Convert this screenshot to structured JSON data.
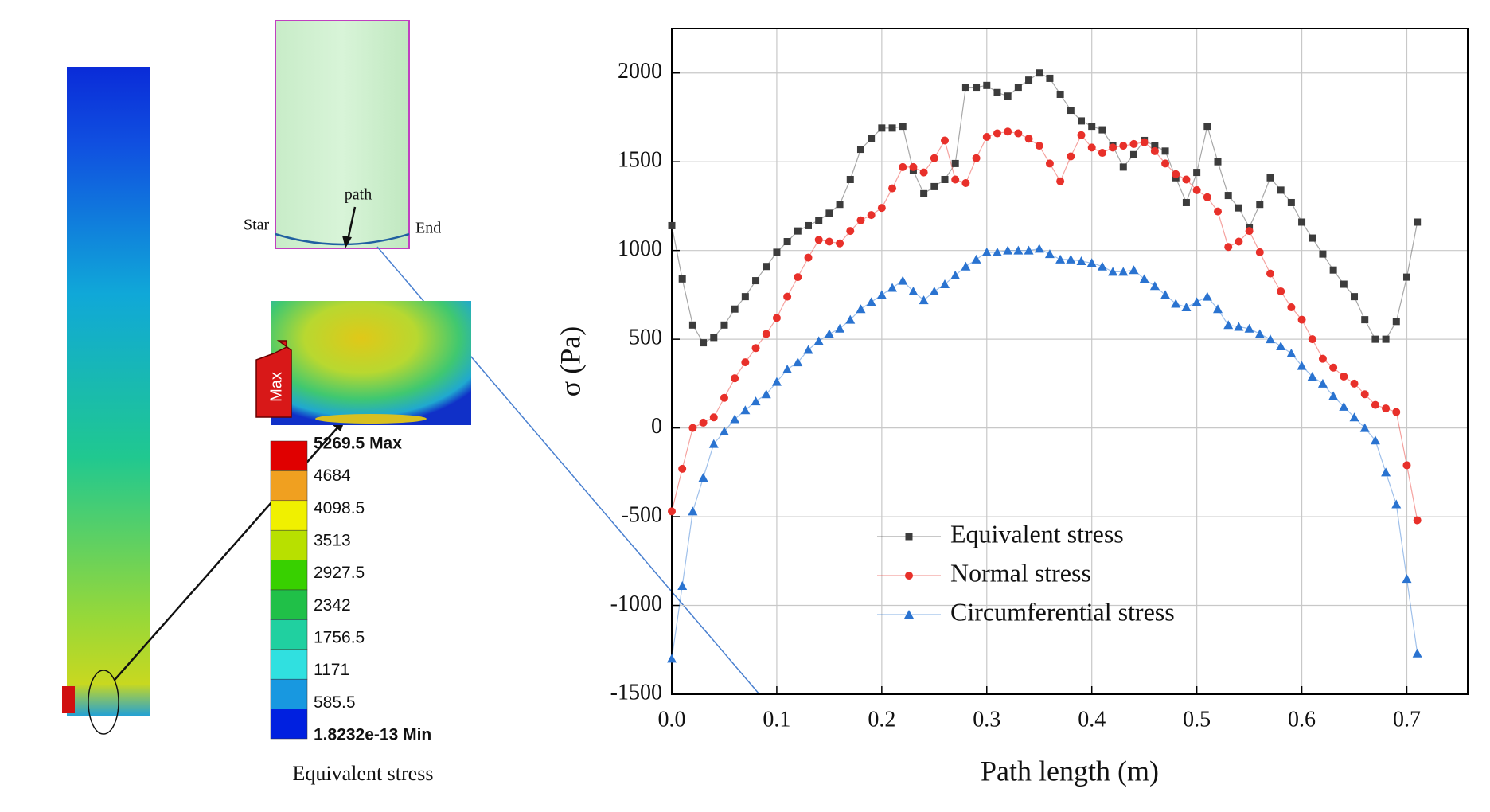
{
  "figure": {
    "path_label": "path",
    "start_label": "Star",
    "end_label": "End",
    "max_tag": "Max",
    "colorbar_labels": [
      "5269.5 Max",
      "4684",
      "4098.5",
      "3513",
      "2927.5",
      "2342",
      "1756.5",
      "1171",
      "585.5",
      "1.8232e-13 Min"
    ],
    "caption": "Equivalent stress"
  },
  "chart_data": {
    "type": "line",
    "x_label": "Path length (m)",
    "y_label": "σ (Pa)",
    "x": [
      0,
      0.01,
      0.02,
      0.03,
      0.04,
      0.05,
      0.06,
      0.07,
      0.08,
      0.09,
      0.1,
      0.11,
      0.12,
      0.13,
      0.14,
      0.15,
      0.16,
      0.17,
      0.18,
      0.19,
      0.2,
      0.21,
      0.22,
      0.23,
      0.24,
      0.25,
      0.26,
      0.27,
      0.28,
      0.29,
      0.3,
      0.31,
      0.32,
      0.33,
      0.34,
      0.35,
      0.36,
      0.37,
      0.38,
      0.39,
      0.4,
      0.41,
      0.42,
      0.43,
      0.44,
      0.45,
      0.46,
      0.47,
      0.48,
      0.49,
      0.5,
      0.51,
      0.52,
      0.53,
      0.54,
      0.55,
      0.56,
      0.57,
      0.58,
      0.59,
      0.6,
      0.61,
      0.62,
      0.63,
      0.64,
      0.65,
      0.66,
      0.67,
      0.68,
      0.69,
      0.7,
      0.71
    ],
    "series": [
      {
        "name": "Equivalent stress",
        "color": "#3c3c3c",
        "marker": "square",
        "values": [
          1140,
          840,
          580,
          480,
          510,
          580,
          670,
          740,
          830,
          910,
          990,
          1050,
          1110,
          1140,
          1170,
          1210,
          1260,
          1400,
          1570,
          1630,
          1690,
          1690,
          1700,
          1450,
          1320,
          1360,
          1400,
          1490,
          1920,
          1920,
          1930,
          1890,
          1870,
          1920,
          1960,
          2000,
          1970,
          1880,
          1790,
          1730,
          1700,
          1680,
          1590,
          1470,
          1540,
          1620,
          1590,
          1560,
          1410,
          1270,
          1440,
          1700,
          1500,
          1310,
          1240,
          1130,
          1260,
          1410,
          1340,
          1270,
          1160,
          1070,
          980,
          890,
          810,
          740,
          610,
          500,
          500,
          600,
          850,
          1160
        ]
      },
      {
        "name": "Normal stress",
        "color": "#e8302a",
        "marker": "circle",
        "values": [
          -470,
          -230,
          0,
          30,
          60,
          170,
          280,
          370,
          450,
          530,
          620,
          740,
          850,
          960,
          1060,
          1050,
          1040,
          1110,
          1170,
          1200,
          1240,
          1350,
          1470,
          1470,
          1440,
          1520,
          1620,
          1400,
          1380,
          1520,
          1640,
          1660,
          1670,
          1660,
          1630,
          1590,
          1490,
          1390,
          1530,
          1650,
          1580,
          1550,
          1580,
          1590,
          1600,
          1610,
          1560,
          1490,
          1430,
          1400,
          1340,
          1300,
          1220,
          1020,
          1050,
          1110,
          990,
          870,
          770,
          680,
          610,
          500,
          390,
          340,
          290,
          250,
          190,
          130,
          110,
          90,
          -210,
          -520
        ]
      },
      {
        "name": "Circumferential stress",
        "color": "#2a73d0",
        "marker": "triangle",
        "values": [
          -1300,
          -890,
          -470,
          -280,
          -90,
          -20,
          50,
          100,
          150,
          190,
          260,
          330,
          370,
          440,
          490,
          530,
          560,
          610,
          670,
          710,
          750,
          790,
          830,
          770,
          720,
          770,
          810,
          860,
          910,
          950,
          990,
          990,
          1000,
          1000,
          1000,
          1010,
          980,
          950,
          950,
          940,
          930,
          910,
          880,
          880,
          890,
          840,
          800,
          750,
          700,
          680,
          710,
          740,
          670,
          580,
          570,
          560,
          530,
          500,
          460,
          420,
          350,
          290,
          250,
          180,
          120,
          60,
          0,
          -70,
          -250,
          -430,
          -850,
          -1270
        ]
      }
    ],
    "xlim": [
      0,
      0.758
    ],
    "ylim": [
      -1500,
      2250
    ],
    "xticks": [
      {
        "value": 0,
        "label": "0.0"
      },
      0.1,
      0.2,
      0.3,
      0.4,
      0.5,
      0.6,
      0.7
    ],
    "yticks": [
      -1500,
      -1000,
      -500,
      0,
      500,
      1000,
      1500,
      2000
    ],
    "grid": true
  }
}
